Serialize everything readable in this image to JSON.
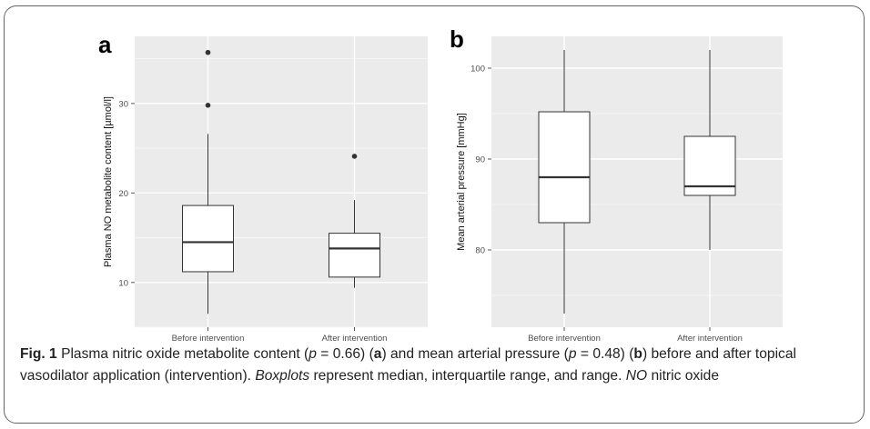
{
  "chart_data": [
    {
      "type": "boxplot",
      "panel_label": "a",
      "ylabel": "Plasma NO metabolite content [µmol/l]",
      "categories": [
        "Before intervention",
        "After intervention"
      ],
      "ylim": [
        5,
        37.5
      ],
      "yticks": [
        10,
        20,
        30
      ],
      "grid": true,
      "boxes": [
        {
          "category": "Before intervention",
          "whisker_low": 6.5,
          "q1": 11.2,
          "median": 14.5,
          "q3": 18.6,
          "whisker_high": 26.6,
          "outliers": [
            29.8,
            35.7
          ]
        },
        {
          "category": "After intervention",
          "whisker_low": 9.4,
          "q1": 10.6,
          "median": 13.8,
          "q3": 15.5,
          "whisker_high": 19.2,
          "outliers": [
            24.1
          ]
        }
      ]
    },
    {
      "type": "boxplot",
      "panel_label": "b",
      "ylabel": "Mean arterial pressure [mmHg]",
      "categories": [
        "Before intervention",
        "After intervention"
      ],
      "ylim": [
        71.5,
        103.5
      ],
      "yticks": [
        80,
        90,
        100
      ],
      "grid": true,
      "boxes": [
        {
          "category": "Before intervention",
          "whisker_low": 73,
          "q1": 83,
          "median": 88,
          "q3": 95.2,
          "whisker_high": 102,
          "outliers": []
        },
        {
          "category": "After intervention",
          "whisker_low": 80,
          "q1": 86,
          "median": 87,
          "q3": 92.5,
          "whisker_high": 102,
          "outliers": []
        }
      ]
    }
  ],
  "caption": {
    "fig": "Fig. 1",
    "t1": " Plasma nitric oxide metabolite content (",
    "p1": "p",
    "t2": " = 0.66) (",
    "a": "a",
    "t3": ") and mean arterial pressure (",
    "p2": "p",
    "t4": " = 0.48) (",
    "b": "b",
    "t5": ") before and after topical vasodilator application (intervention). ",
    "boxplots": "Boxplots",
    "t6": " represent median, interquartile range, and range. ",
    "no": "NO",
    "t7": " nitric oxide"
  }
}
